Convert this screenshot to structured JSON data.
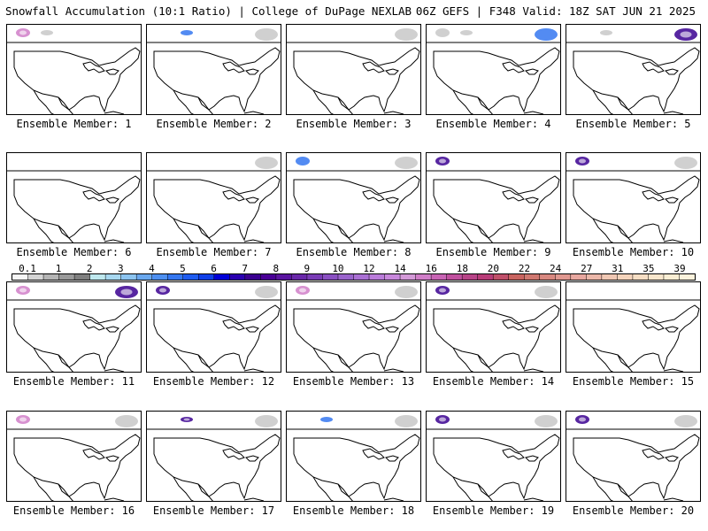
{
  "header": {
    "title_left": "Snowfall Accumulation (10:1 Ratio) | College of DuPage NEXLAB",
    "title_right": "06Z GEFS | F348 Valid: 18Z SAT JUN 21 2025"
  },
  "members": [
    {
      "label": "Ensemble Member: 1",
      "snow": [
        {
          "zone": "nw",
          "level": "pink"
        },
        {
          "zone": "n",
          "level": "light"
        }
      ]
    },
    {
      "label": "Ensemble Member: 2",
      "snow": [
        {
          "zone": "n",
          "level": "blue"
        },
        {
          "zone": "ne",
          "level": "light"
        }
      ]
    },
    {
      "label": "Ensemble Member: 3",
      "snow": [
        {
          "zone": "ne",
          "level": "light"
        }
      ]
    },
    {
      "label": "Ensemble Member: 4",
      "snow": [
        {
          "zone": "ne",
          "level": "blue"
        },
        {
          "zone": "n",
          "level": "light"
        },
        {
          "zone": "nw",
          "level": "light"
        }
      ]
    },
    {
      "label": "Ensemble Member: 5",
      "snow": [
        {
          "zone": "ne",
          "level": "purple"
        },
        {
          "zone": "n",
          "level": "light"
        }
      ]
    },
    {
      "label": "Ensemble Member: 6",
      "snow": []
    },
    {
      "label": "Ensemble Member: 7",
      "snow": [
        {
          "zone": "ne",
          "level": "light"
        }
      ]
    },
    {
      "label": "Ensemble Member: 8",
      "snow": [
        {
          "zone": "ne",
          "level": "light"
        },
        {
          "zone": "nw",
          "level": "blue"
        }
      ]
    },
    {
      "label": "Ensemble Member: 9",
      "snow": [
        {
          "zone": "nw",
          "level": "purple"
        }
      ]
    },
    {
      "label": "Ensemble Member: 10",
      "snow": [
        {
          "zone": "nw",
          "level": "purple"
        },
        {
          "zone": "ne",
          "level": "light"
        }
      ]
    },
    {
      "label": "Ensemble Member: 11",
      "snow": [
        {
          "zone": "nw",
          "level": "pink"
        },
        {
          "zone": "ne",
          "level": "purple"
        }
      ]
    },
    {
      "label": "Ensemble Member: 12",
      "snow": [
        {
          "zone": "nw",
          "level": "purple"
        },
        {
          "zone": "ne",
          "level": "light"
        }
      ]
    },
    {
      "label": "Ensemble Member: 13",
      "snow": [
        {
          "zone": "nw",
          "level": "pink"
        },
        {
          "zone": "ne",
          "level": "light"
        }
      ]
    },
    {
      "label": "Ensemble Member: 14",
      "snow": [
        {
          "zone": "nw",
          "level": "purple"
        },
        {
          "zone": "ne",
          "level": "light"
        }
      ]
    },
    {
      "label": "Ensemble Member: 15",
      "snow": []
    },
    {
      "label": "Ensemble Member: 16",
      "snow": [
        {
          "zone": "nw",
          "level": "pink"
        },
        {
          "zone": "ne",
          "level": "light"
        }
      ]
    },
    {
      "label": "Ensemble Member: 17",
      "snow": [
        {
          "zone": "n",
          "level": "purple"
        },
        {
          "zone": "ne",
          "level": "light"
        }
      ]
    },
    {
      "label": "Ensemble Member: 18",
      "snow": [
        {
          "zone": "ne",
          "level": "light"
        },
        {
          "zone": "n",
          "level": "blue"
        }
      ]
    },
    {
      "label": "Ensemble Member: 19",
      "snow": [
        {
          "zone": "nw",
          "level": "purple"
        },
        {
          "zone": "ne",
          "level": "light"
        }
      ]
    },
    {
      "label": "Ensemble Member: 20",
      "snow": [
        {
          "zone": "nw",
          "level": "purple"
        },
        {
          "zone": "ne",
          "level": "light"
        }
      ]
    }
  ],
  "colorbar": {
    "labels": [
      "0.1",
      "1",
      "2",
      "3",
      "4",
      "5",
      "6",
      "7",
      "8",
      "9",
      "10",
      "12",
      "14",
      "16",
      "18",
      "20",
      "22",
      "24",
      "27",
      "31",
      "35",
      "39"
    ],
    "colors": [
      "#f7f7f7",
      "#d4d4d4",
      "#b4b4b4",
      "#9a9a9a",
      "#808080",
      "#bfe8ee",
      "#a8d8f0",
      "#8cc4f0",
      "#6aa8ee",
      "#4d8ff0",
      "#3577f0",
      "#1f5cf0",
      "#0f3fe8",
      "#0000d8",
      "#2a00b0",
      "#3a0090",
      "#4a0096",
      "#5a14a0",
      "#6a28aa",
      "#7a3cb6",
      "#8a50c2",
      "#9a64cc",
      "#aa70d4",
      "#ba7cda",
      "#c888dc",
      "#d49ad8",
      "#d07ec8",
      "#c864b4",
      "#c0509e",
      "#b84488",
      "#b83c78",
      "#c0506a",
      "#c86460",
      "#d07870",
      "#d88880",
      "#e09890",
      "#e8a8a0",
      "#ecb8aa",
      "#f0c8b4",
      "#f4d4bc",
      "#f6dec4",
      "#f8e6cc",
      "#faeed4",
      "#fcf2dc"
    ]
  }
}
